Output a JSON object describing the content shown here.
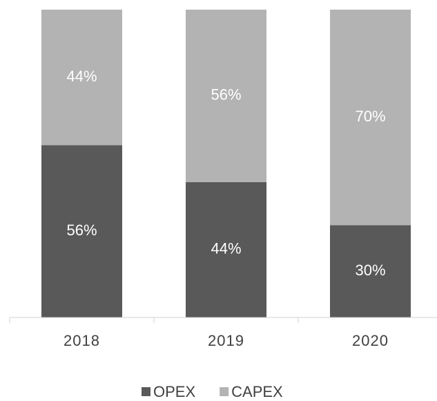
{
  "chart_data": {
    "type": "stacked_bar",
    "categories": [
      "2018",
      "2019",
      "2020"
    ],
    "series": [
      {
        "name": "OPEX",
        "color": "#595959",
        "values": [
          56,
          44,
          30
        ],
        "value_labels": [
          "56%",
          "44%",
          "30%"
        ]
      },
      {
        "name": "CAPEX",
        "color": "#b3b3b3",
        "values": [
          44,
          56,
          70
        ],
        "value_labels": [
          "44%",
          "56%",
          "70%"
        ]
      }
    ],
    "ylim": [
      0,
      100
    ]
  }
}
